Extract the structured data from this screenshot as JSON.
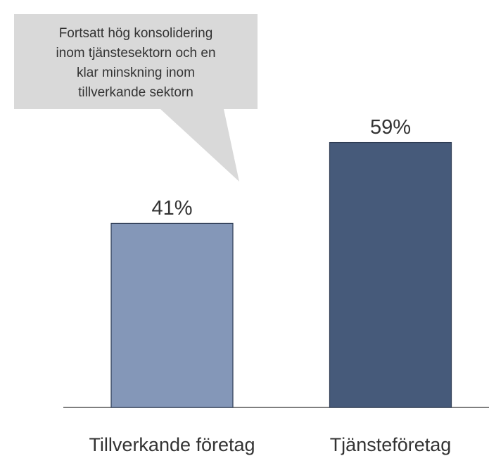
{
  "chart_data": {
    "type": "bar",
    "categories": [
      "Tillverkande företag",
      "Tjänsteföretag"
    ],
    "values": [
      41,
      59
    ],
    "value_labels": [
      "41%",
      "59%"
    ],
    "colors": [
      "#8497b8",
      "#465a7a"
    ],
    "annotation": [
      "Fortsatt hög konsolidering",
      "inom tjänstesektorn och en",
      "klar minskning inom",
      "tillverkande sektorn"
    ]
  }
}
